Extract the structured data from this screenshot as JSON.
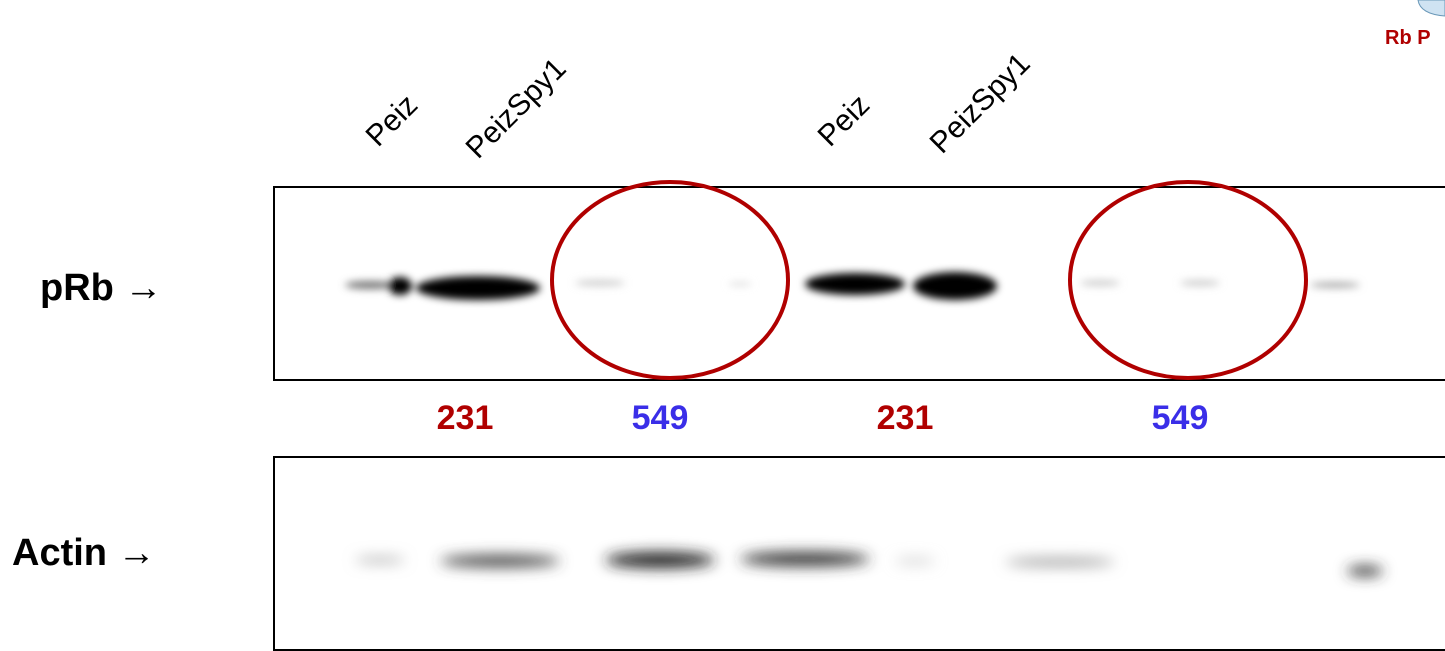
{
  "lane_labels": [
    "Peiz",
    "PeizSpy1",
    "Peiz",
    "PeizSpy1"
  ],
  "row_labels": [
    "pRb →",
    "Actin →"
  ],
  "cell_line_labels": [
    {
      "text": "231",
      "color": "#b00000"
    },
    {
      "text": "549",
      "color": "#3a2ee8"
    },
    {
      "text": "231",
      "color": "#b00000"
    },
    {
      "text": "549",
      "color": "#3a2ee8"
    }
  ],
  "corner_label": "Rb P"
}
